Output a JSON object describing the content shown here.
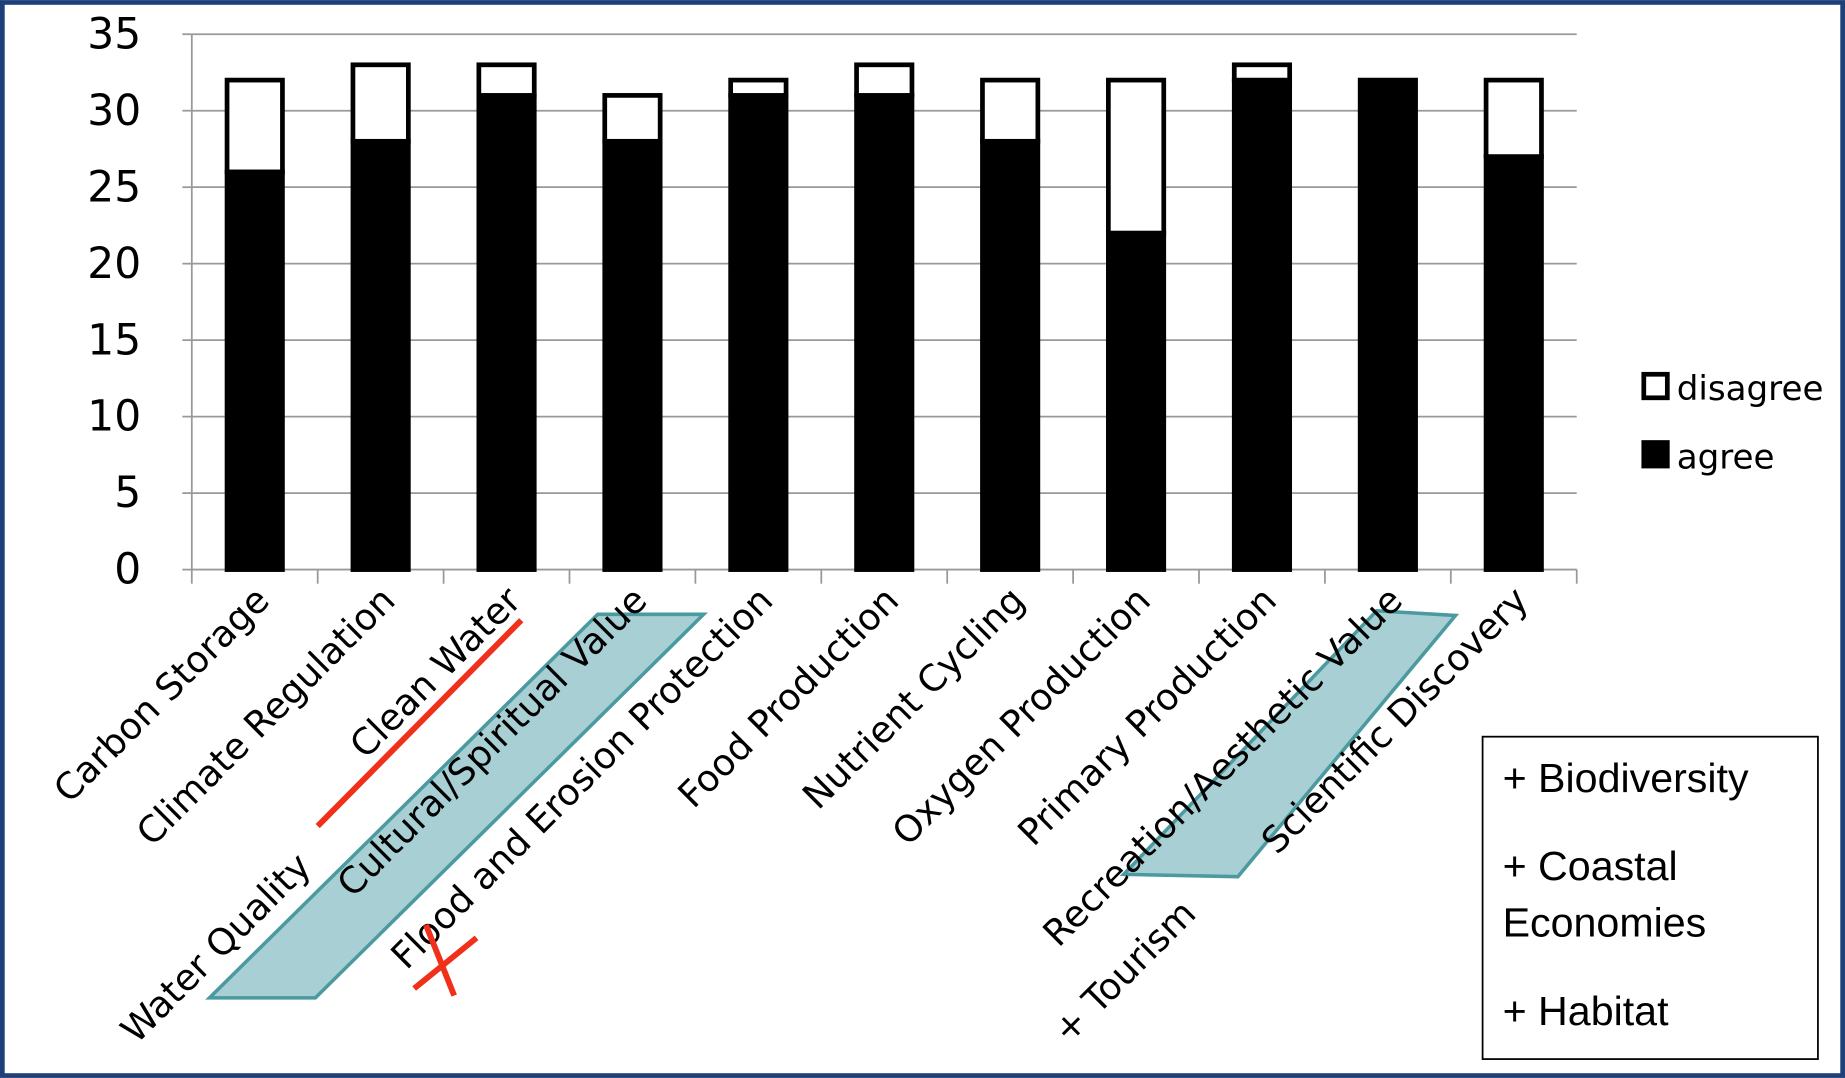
{
  "chart_data": {
    "type": "stacked_bar",
    "categories": [
      "Carbon Storage",
      "Climate Regulation",
      "Clean Water",
      "Cultural/Spiritual Value",
      "Flood and Erosion Protection",
      "Food Production",
      "Nutrient Cycling",
      "Oxygen Production",
      "Primary Production",
      "Recreation/Aesthetic Value",
      "Scientific Discovery"
    ],
    "series": [
      {
        "name": "agree",
        "color": "#000000",
        "values": [
          26,
          28,
          31,
          28,
          31,
          31,
          28,
          22,
          32,
          32,
          27
        ]
      },
      {
        "name": "disagree",
        "color": "#ffffff",
        "values": [
          6,
          5,
          2,
          3,
          1,
          2,
          4,
          10,
          1,
          0,
          5
        ]
      }
    ],
    "ylim": [
      0,
      35
    ],
    "yticks": [
      0,
      5,
      10,
      15,
      20,
      25,
      30,
      35
    ],
    "grid": true,
    "annotations": {
      "water_quality": "Water Quality",
      "tourism": "+ Tourism",
      "box": [
        "+ Biodiversity",
        "+ Coastal",
        "Economies",
        "+ Habitat"
      ]
    }
  }
}
